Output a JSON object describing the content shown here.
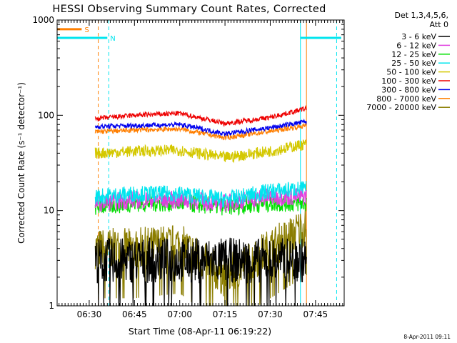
{
  "chart_data": {
    "type": "line",
    "title": "HESSI Observing Summary Count Rates, Corrected",
    "xlabel": "Start Time (08-Apr-11 06:19:22)",
    "ylabel": "Corrected Count Rate (s⁻¹ detector⁻¹)",
    "y_scale": "log",
    "ylim": [
      1,
      1000
    ],
    "xlim_minutes_utc": [
      "06:19:22",
      "07:54:30"
    ],
    "x_ticks": [
      "06:30",
      "06:45",
      "07:00",
      "07:15",
      "07:30",
      "07:45"
    ],
    "y_ticks": [
      "1",
      "10",
      "100",
      "1000"
    ],
    "legend_position": "right",
    "legend_header": [
      "Det 1,3,4,5,6,",
      "Att 0"
    ],
    "timestamp": "8-Apr-2011 09:11",
    "flags": [
      {
        "label": "S",
        "color": "#ff7f00",
        "start": "06:19:22",
        "end": "06:27:30",
        "y": 800
      },
      {
        "label": "N",
        "color": "#00e5ee",
        "start": "06:19:22",
        "end": "06:36:00",
        "y": 650
      },
      {
        "label": "",
        "color": "#00e5ee",
        "start": "07:40:00",
        "end": "07:53:30",
        "y": 650
      }
    ],
    "markers": [
      {
        "time": "06:19:22",
        "color": "#00e5ee",
        "style": "solid"
      },
      {
        "time": "06:33:00",
        "color": "#ff7f00",
        "style": "dashed"
      },
      {
        "time": "06:36:30",
        "color": "#00e5ee",
        "style": "dashed"
      },
      {
        "time": "07:40:00",
        "color": "#00e5ee",
        "style": "solid"
      },
      {
        "time": "07:42:00",
        "color": "#ff7f00",
        "style": "solid"
      },
      {
        "time": "07:52:00",
        "color": "#00e5ee",
        "style": "dashed"
      }
    ],
    "series": [
      {
        "name": "3 - 6 keV",
        "color": "#000000",
        "x": [
          "06:32",
          "06:45",
          "07:00",
          "07:15",
          "07:30",
          "07:42"
        ],
        "values": [
          3,
          3,
          3,
          3,
          3,
          3
        ]
      },
      {
        "name": "6 - 12 keV",
        "color": "#e040e0",
        "x": [
          "06:32",
          "06:45",
          "07:00",
          "07:15",
          "07:30",
          "07:42"
        ],
        "values": [
          12,
          13,
          13,
          12,
          14,
          14
        ]
      },
      {
        "name": "12 - 25 keV",
        "color": "#00e000",
        "x": [
          "06:32",
          "06:45",
          "07:00",
          "07:15",
          "07:30",
          "07:42"
        ],
        "values": [
          11,
          12,
          12,
          11,
          12,
          12
        ]
      },
      {
        "name": "25 - 50 keV",
        "color": "#00e5ee",
        "x": [
          "06:32",
          "06:45",
          "07:00",
          "07:15",
          "07:30",
          "07:42"
        ],
        "values": [
          14,
          15,
          15,
          13,
          16,
          17
        ]
      },
      {
        "name": "50 - 100 keV",
        "color": "#d4c800",
        "x": [
          "06:32",
          "06:45",
          "07:00",
          "07:15",
          "07:30",
          "07:42"
        ],
        "values": [
          40,
          42,
          43,
          36,
          42,
          50
        ]
      },
      {
        "name": "100 - 300 keV",
        "color": "#ee0000",
        "x": [
          "06:32",
          "06:45",
          "07:00",
          "07:15",
          "07:30",
          "07:42"
        ],
        "values": [
          92,
          100,
          105,
          82,
          95,
          118
        ]
      },
      {
        "name": "300 - 800 keV",
        "color": "#0000ee",
        "x": [
          "06:32",
          "06:45",
          "07:00",
          "07:15",
          "07:30",
          "07:42"
        ],
        "values": [
          76,
          78,
          80,
          64,
          74,
          86
        ]
      },
      {
        "name": "800 - 7000 keV",
        "color": "#ff7f00",
        "x": [
          "06:32",
          "06:45",
          "07:00",
          "07:15",
          "07:30",
          "07:42"
        ],
        "values": [
          67,
          70,
          72,
          58,
          68,
          78
        ]
      },
      {
        "name": "7000 - 20000 keV",
        "color": "#8b7d00",
        "x": [
          "06:32",
          "06:45",
          "07:00",
          "07:15",
          "07:30",
          "07:42"
        ],
        "values": [
          4,
          4,
          4.5,
          2,
          4,
          7
        ]
      }
    ]
  }
}
